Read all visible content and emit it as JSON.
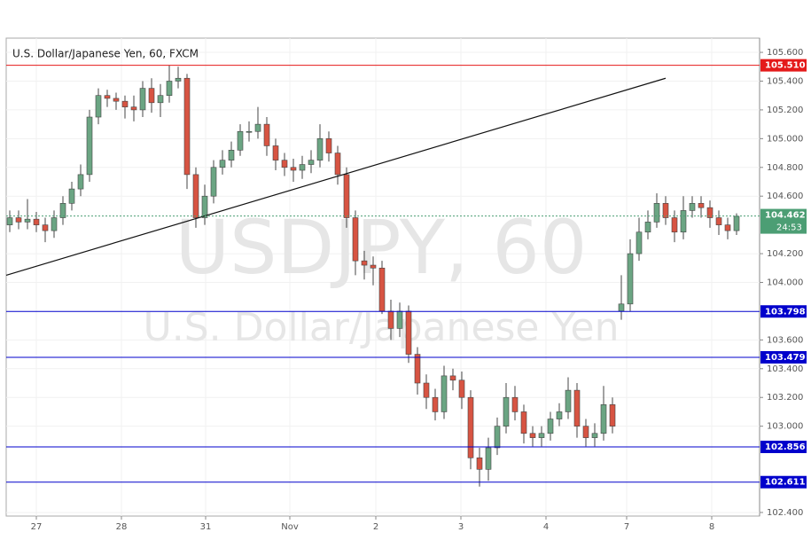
{
  "chart_data": {
    "type": "candlestick",
    "title": "U.S. Dollar/Japanese Yen, 60, FXCM",
    "watermark": "USDJPY, 60",
    "watermark_subtitle": "U.S. Dollar/Japanese Yen",
    "grid": true,
    "up_color": "#6ba583",
    "down_color": "#d75442",
    "xlim": [
      0,
      212.5
    ],
    "xticks": [
      {
        "value": 8.5,
        "label": "27"
      },
      {
        "value": 32.5,
        "label": "28"
      },
      {
        "value": 56.25,
        "label": "31"
      },
      {
        "value": 80,
        "label": "Nov"
      },
      {
        "value": 104.25,
        "label": "2"
      },
      {
        "value": 128.25,
        "label": "3"
      },
      {
        "value": 152.25,
        "label": "4"
      },
      {
        "value": 175,
        "label": "7"
      },
      {
        "value": 199,
        "label": "8"
      }
    ],
    "ylim": [
      102.375,
      105.699
    ],
    "yticks": [
      {
        "value": 105.6,
        "label": "105.600"
      },
      {
        "value": 105.4,
        "label": "105.400"
      },
      {
        "value": 105.2,
        "label": "105.200"
      },
      {
        "value": 105,
        "label": "105.000"
      },
      {
        "value": 104.8,
        "label": "104.800"
      },
      {
        "value": 104.6,
        "label": "104.600"
      },
      {
        "value": 104.2,
        "label": "104.200"
      },
      {
        "value": 104,
        "label": "104.000"
      },
      {
        "value": 103.6,
        "label": "103.600"
      },
      {
        "value": 103.4,
        "label": "103.400"
      },
      {
        "value": 103.2,
        "label": "103.200"
      },
      {
        "value": 103,
        "label": "103.000"
      },
      {
        "value": 102.4,
        "label": "102.400"
      }
    ],
    "x": [
      1,
      3.5,
      6,
      8.5,
      11,
      13.5,
      16,
      18.5,
      21,
      23.5,
      26,
      28.5,
      31,
      33.5,
      36,
      38.5,
      41,
      43.5,
      46,
      48.5,
      51,
      53.5,
      56,
      58.5,
      61,
      63.5,
      66,
      68.5,
      71,
      73.5,
      76,
      78.5,
      81,
      83.5,
      86,
      88.5,
      91,
      93.5,
      96,
      98.5,
      101,
      103.5,
      106,
      108.5,
      111,
      113.5,
      116,
      118.5,
      121,
      123.5,
      126,
      128.5,
      131,
      133.5,
      136,
      138.5,
      141,
      143.5,
      146,
      148.5,
      151,
      153.5,
      156,
      158.5,
      161,
      163.5,
      166,
      168.5,
      171,
      173.5,
      176,
      178.5,
      181,
      183.5,
      186,
      188.5,
      191,
      193.5,
      196,
      198.5,
      201,
      203.5,
      206
    ],
    "open": [
      104.4,
      104.45,
      104.42,
      104.44,
      104.4,
      104.36,
      104.45,
      104.55,
      104.65,
      104.75,
      105.15,
      105.3,
      105.28,
      105.26,
      105.22,
      105.2,
      105.35,
      105.25,
      105.3,
      105.4,
      105.42,
      104.75,
      104.45,
      104.6,
      104.8,
      104.85,
      104.92,
      105.05,
      105.05,
      105.1,
      104.95,
      104.85,
      104.8,
      104.78,
      104.82,
      104.85,
      105.0,
      104.9,
      104.75,
      104.45,
      104.15,
      104.12,
      104.1,
      103.8,
      103.68,
      103.8,
      103.5,
      103.3,
      103.2,
      103.1,
      103.35,
      103.32,
      103.2,
      102.78,
      102.7,
      102.85,
      103.0,
      103.2,
      103.1,
      102.95,
      102.92,
      102.95,
      103.05,
      103.1,
      103.25,
      103.0,
      102.92,
      102.95,
      103.15,
      103.8,
      103.85,
      104.2,
      104.35,
      104.42,
      104.55,
      104.45,
      104.35,
      104.5,
      104.55,
      104.52,
      104.45,
      104.4,
      104.36
    ],
    "high": [
      104.5,
      104.5,
      104.58,
      104.49,
      104.45,
      104.5,
      104.6,
      104.7,
      104.82,
      105.2,
      105.35,
      105.34,
      105.32,
      105.3,
      105.3,
      105.4,
      105.42,
      105.38,
      105.51,
      105.5,
      105.45,
      104.8,
      104.68,
      104.85,
      104.92,
      104.98,
      105.1,
      105.12,
      105.22,
      105.15,
      105.0,
      104.9,
      104.86,
      104.88,
      104.92,
      105.1,
      105.05,
      104.95,
      104.8,
      104.5,
      104.22,
      104.18,
      104.15,
      103.88,
      103.86,
      103.84,
      103.55,
      103.36,
      103.26,
      103.42,
      103.4,
      103.38,
      103.25,
      102.85,
      102.92,
      103.06,
      103.3,
      103.28,
      103.15,
      103.0,
      103.0,
      103.1,
      103.16,
      103.34,
      103.3,
      103.05,
      103.02,
      103.28,
      103.2,
      104.05,
      104.3,
      104.45,
      104.5,
      104.62,
      104.6,
      104.5,
      104.6,
      104.6,
      104.6,
      104.57,
      104.5,
      104.45,
      104.48
    ],
    "low": [
      104.35,
      104.37,
      104.37,
      104.35,
      104.28,
      104.31,
      104.4,
      104.5,
      104.6,
      104.7,
      105.1,
      105.22,
      105.2,
      105.14,
      105.12,
      105.15,
      105.18,
      105.15,
      105.25,
      105.35,
      104.65,
      104.38,
      104.4,
      104.55,
      104.75,
      104.8,
      104.88,
      104.98,
      105.0,
      104.88,
      104.78,
      104.74,
      104.7,
      104.72,
      104.76,
      104.8,
      104.84,
      104.68,
      104.38,
      104.05,
      104.02,
      103.98,
      103.78,
      103.6,
      103.62,
      103.44,
      103.22,
      103.12,
      103.04,
      103.05,
      103.25,
      103.12,
      102.7,
      102.58,
      102.62,
      102.8,
      102.95,
      103.04,
      102.88,
      102.86,
      102.86,
      102.9,
      103.0,
      103.05,
      102.92,
      102.86,
      102.86,
      102.9,
      102.95,
      103.74,
      103.8,
      104.15,
      104.3,
      104.38,
      104.4,
      104.28,
      104.3,
      104.45,
      104.45,
      104.38,
      104.33,
      104.3,
      104.33
    ],
    "close": [
      104.45,
      104.42,
      104.44,
      104.4,
      104.36,
      104.45,
      104.55,
      104.65,
      104.75,
      105.15,
      105.3,
      105.28,
      105.26,
      105.22,
      105.2,
      105.35,
      105.25,
      105.3,
      105.4,
      105.42,
      104.75,
      104.45,
      104.6,
      104.8,
      104.85,
      104.92,
      105.05,
      105.05,
      105.1,
      104.95,
      104.85,
      104.8,
      104.78,
      104.82,
      104.85,
      105.0,
      104.9,
      104.75,
      104.45,
      104.15,
      104.12,
      104.1,
      103.8,
      103.68,
      103.8,
      103.5,
      103.3,
      103.2,
      103.1,
      103.35,
      103.32,
      103.2,
      102.78,
      102.7,
      102.85,
      103.0,
      103.2,
      103.1,
      102.95,
      102.92,
      102.95,
      103.05,
      103.1,
      103.25,
      103.0,
      102.92,
      102.95,
      103.15,
      103.0,
      103.85,
      104.2,
      104.35,
      104.42,
      104.55,
      104.45,
      104.35,
      104.5,
      104.55,
      104.52,
      104.45,
      104.4,
      104.36,
      104.46
    ],
    "levels": [
      {
        "value": 105.51,
        "label": "105.510",
        "color": "#e41a1a"
      },
      {
        "value": 103.798,
        "label": "103.798",
        "color": "#0000cc"
      },
      {
        "value": 103.479,
        "label": "103.479",
        "color": "#0000cc"
      },
      {
        "value": 102.856,
        "label": "102.856",
        "color": "#0000cc"
      },
      {
        "value": 102.611,
        "label": "102.611",
        "color": "#0000cc"
      }
    ],
    "trendline": {
      "x": [
        0,
        186
      ],
      "y": [
        104.05,
        105.42
      ],
      "color": "#111111"
    },
    "last_price": 104.462,
    "countdown": "24:53",
    "last_price_color": "#4c9e74"
  }
}
